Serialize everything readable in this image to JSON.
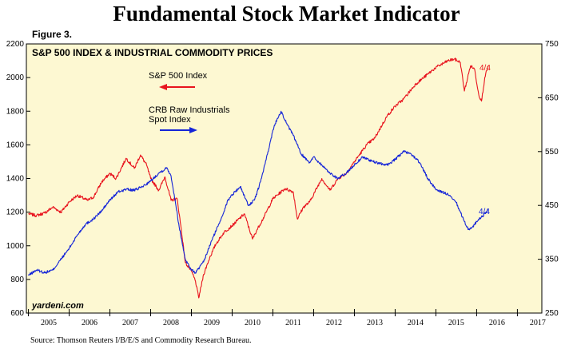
{
  "title": "Fundamental Stock Market Indicator",
  "figure_label": "Figure 3.",
  "chart_title": "S&P 500 INDEX & INDUSTRIAL COMMODITY PRICES",
  "watermark": "yardeni.com",
  "source": "Source: Thomson Reuters I/B/E/S and Commodity Research Bureau.",
  "colors": {
    "background": "#fdf8d2",
    "sp500": "#e8141e",
    "crb": "#1424d8"
  },
  "chart_data": {
    "type": "line",
    "title": "S&P 500 INDEX & INDUSTRIAL COMMODITY PRICES",
    "x_ticks": [
      "2005",
      "2006",
      "2007",
      "2008",
      "2009",
      "2010",
      "2011",
      "2012",
      "2013",
      "2014",
      "2015",
      "2016",
      "2017"
    ],
    "xlim": [
      2004.95,
      2017.6
    ],
    "ylim_left": [
      600,
      2200
    ],
    "yticks_left": [
      600,
      800,
      1000,
      1200,
      1400,
      1600,
      1800,
      2000,
      2200
    ],
    "ylim_right": [
      250,
      750
    ],
    "yticks_right": [
      250,
      350,
      450,
      550,
      650,
      750
    ],
    "grid": false,
    "series": [
      {
        "name": "S&P 500 Index",
        "axis": "left",
        "end_label": "4/4",
        "points": [
          [
            2005.0,
            1190
          ],
          [
            2005.2,
            1180
          ],
          [
            2005.4,
            1195
          ],
          [
            2005.6,
            1230
          ],
          [
            2005.8,
            1200
          ],
          [
            2006.0,
            1260
          ],
          [
            2006.2,
            1300
          ],
          [
            2006.45,
            1270
          ],
          [
            2006.6,
            1290
          ],
          [
            2006.8,
            1380
          ],
          [
            2007.0,
            1430
          ],
          [
            2007.15,
            1400
          ],
          [
            2007.4,
            1520
          ],
          [
            2007.6,
            1460
          ],
          [
            2007.75,
            1540
          ],
          [
            2007.9,
            1480
          ],
          [
            2008.0,
            1400
          ],
          [
            2008.2,
            1330
          ],
          [
            2008.35,
            1410
          ],
          [
            2008.5,
            1270
          ],
          [
            2008.65,
            1280
          ],
          [
            2008.75,
            1100
          ],
          [
            2008.85,
            900
          ],
          [
            2009.0,
            850
          ],
          [
            2009.1,
            790
          ],
          [
            2009.18,
            690
          ],
          [
            2009.3,
            830
          ],
          [
            2009.45,
            930
          ],
          [
            2009.6,
            1010
          ],
          [
            2009.8,
            1080
          ],
          [
            2010.0,
            1120
          ],
          [
            2010.3,
            1190
          ],
          [
            2010.5,
            1040
          ],
          [
            2010.6,
            1090
          ],
          [
            2010.8,
            1180
          ],
          [
            2011.0,
            1280
          ],
          [
            2011.3,
            1340
          ],
          [
            2011.5,
            1320
          ],
          [
            2011.6,
            1160
          ],
          [
            2011.75,
            1230
          ],
          [
            2011.9,
            1260
          ],
          [
            2012.2,
            1400
          ],
          [
            2012.4,
            1330
          ],
          [
            2012.6,
            1400
          ],
          [
            2012.8,
            1430
          ],
          [
            2013.0,
            1500
          ],
          [
            2013.3,
            1600
          ],
          [
            2013.5,
            1640
          ],
          [
            2013.8,
            1770
          ],
          [
            2014.0,
            1830
          ],
          [
            2014.2,
            1870
          ],
          [
            2014.5,
            1960
          ],
          [
            2014.8,
            2020
          ],
          [
            2015.0,
            2060
          ],
          [
            2015.3,
            2100
          ],
          [
            2015.45,
            2110
          ],
          [
            2015.6,
            2090
          ],
          [
            2015.7,
            1920
          ],
          [
            2015.85,
            2070
          ],
          [
            2015.95,
            2050
          ],
          [
            2016.05,
            1900
          ],
          [
            2016.12,
            1860
          ],
          [
            2016.2,
            2000
          ],
          [
            2016.28,
            2070
          ]
        ]
      },
      {
        "name": "CRB Raw Industrials Spot Index",
        "axis": "right",
        "end_label": "4/4",
        "points": [
          [
            2005.0,
            320
          ],
          [
            2005.2,
            330
          ],
          [
            2005.4,
            325
          ],
          [
            2005.6,
            330
          ],
          [
            2005.8,
            350
          ],
          [
            2006.0,
            370
          ],
          [
            2006.2,
            395
          ],
          [
            2006.4,
            415
          ],
          [
            2006.6,
            425
          ],
          [
            2006.8,
            440
          ],
          [
            2007.0,
            460
          ],
          [
            2007.2,
            475
          ],
          [
            2007.4,
            480
          ],
          [
            2007.6,
            478
          ],
          [
            2007.8,
            485
          ],
          [
            2008.0,
            495
          ],
          [
            2008.2,
            510
          ],
          [
            2008.4,
            520
          ],
          [
            2008.5,
            505
          ],
          [
            2008.6,
            460
          ],
          [
            2008.7,
            410
          ],
          [
            2008.85,
            350
          ],
          [
            2009.0,
            330
          ],
          [
            2009.1,
            325
          ],
          [
            2009.3,
            345
          ],
          [
            2009.5,
            385
          ],
          [
            2009.7,
            420
          ],
          [
            2009.9,
            460
          ],
          [
            2010.0,
            470
          ],
          [
            2010.2,
            485
          ],
          [
            2010.4,
            450
          ],
          [
            2010.55,
            460
          ],
          [
            2010.7,
            495
          ],
          [
            2010.9,
            555
          ],
          [
            2011.0,
            590
          ],
          [
            2011.1,
            610
          ],
          [
            2011.2,
            625
          ],
          [
            2011.35,
            600
          ],
          [
            2011.5,
            580
          ],
          [
            2011.7,
            545
          ],
          [
            2011.9,
            530
          ],
          [
            2012.0,
            540
          ],
          [
            2012.2,
            525
          ],
          [
            2012.4,
            510
          ],
          [
            2012.6,
            500
          ],
          [
            2012.8,
            510
          ],
          [
            2013.0,
            525
          ],
          [
            2013.2,
            540
          ],
          [
            2013.5,
            530
          ],
          [
            2013.8,
            525
          ],
          [
            2014.0,
            535
          ],
          [
            2014.2,
            550
          ],
          [
            2014.4,
            545
          ],
          [
            2014.6,
            530
          ],
          [
            2014.8,
            500
          ],
          [
            2015.0,
            480
          ],
          [
            2015.3,
            470
          ],
          [
            2015.5,
            455
          ],
          [
            2015.7,
            420
          ],
          [
            2015.8,
            405
          ],
          [
            2015.9,
            410
          ],
          [
            2016.0,
            420
          ],
          [
            2016.15,
            430
          ],
          [
            2016.28,
            442
          ]
        ]
      }
    ],
    "legend": [
      {
        "label": "S&P 500 Index",
        "arrow": "left"
      },
      {
        "label": "CRB Raw Industrials\nSpot Index",
        "arrow": "right"
      }
    ]
  }
}
